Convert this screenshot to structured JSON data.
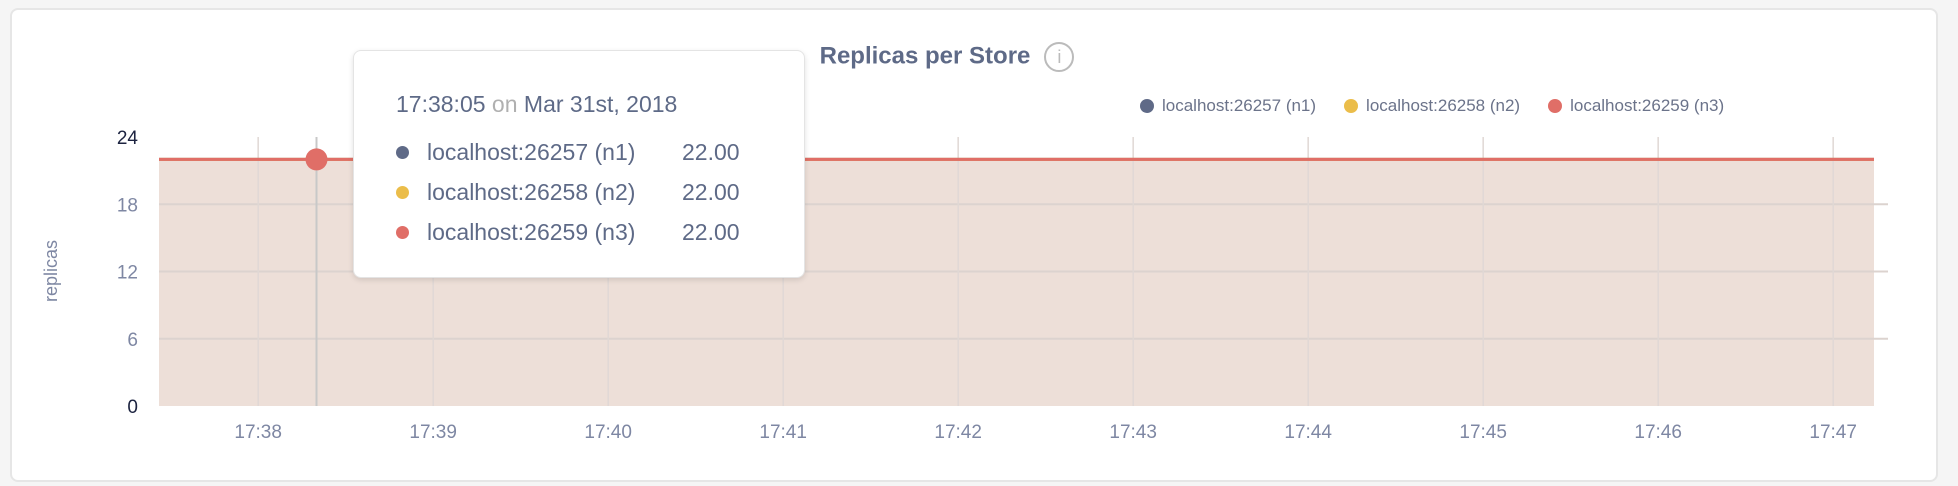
{
  "chart_data": {
    "type": "area",
    "title": "Replicas per Store",
    "ylabel": "replicas",
    "xlabel": "",
    "ylim": [
      0,
      24
    ],
    "yticks": [
      "0",
      "6",
      "12",
      "18",
      "24"
    ],
    "xticks": [
      "17:38",
      "17:39",
      "17:40",
      "17:41",
      "17:42",
      "17:43",
      "17:44",
      "17:45",
      "17:46",
      "17:47"
    ],
    "xlim": [
      "17:37:26",
      "17:47:26"
    ],
    "grid": true,
    "legend_placement": "top-right",
    "series": [
      {
        "name": "localhost:26257 (n1)",
        "color": "#5f6a87",
        "x": [
          "17:37:26",
          "17:47:14"
        ],
        "values": [
          22,
          22
        ]
      },
      {
        "name": "localhost:26258 (n2)",
        "color": "#ebbd4a",
        "x": [
          "17:37:26",
          "17:47:14"
        ],
        "values": [
          22,
          22
        ]
      },
      {
        "name": "localhost:26259 (n3)",
        "color": "#e06e67",
        "x": [
          "17:37:26",
          "17:47:14"
        ],
        "values": [
          22,
          22
        ]
      }
    ],
    "fill_color": "#eddfd8",
    "hover": {
      "time": "17:38:20",
      "value": 22
    }
  },
  "info_icon": "info-icon",
  "tooltip": {
    "time": "17:38:05",
    "on": "on",
    "date": "Mar 31st, 2018",
    "rows": [
      {
        "label": "localhost:26257 (n1)",
        "value": "22.00"
      },
      {
        "label": "localhost:26258 (n2)",
        "value": "22.00"
      },
      {
        "label": "localhost:26259 (n3)",
        "value": "22.00"
      }
    ]
  }
}
